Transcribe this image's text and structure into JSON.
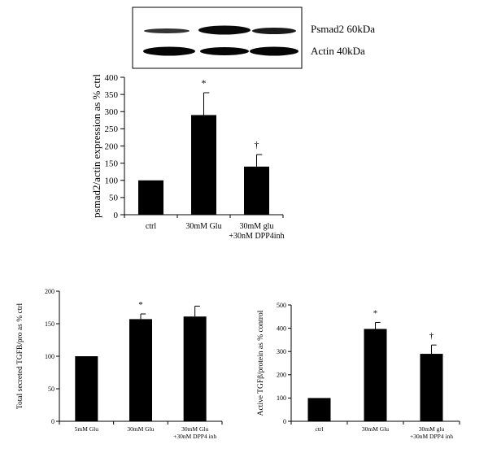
{
  "blot": {
    "labels": [
      "Psmad2 60kDa",
      "Actin 40kDa"
    ]
  },
  "chart_data": [
    {
      "type": "bar",
      "categories": [
        "ctrl",
        "30mM Glu",
        "30mM glu\n+30nM DPP4inh"
      ],
      "values": [
        100,
        290,
        140
      ],
      "errors": [
        0,
        65,
        35
      ],
      "markers": [
        "",
        "*",
        "†"
      ],
      "title": "",
      "xlabel": "",
      "ylabel": "psmad2/actin expression as % ctrl",
      "ylim": [
        0,
        400
      ],
      "yticks": [
        0,
        50,
        100,
        150,
        200,
        250,
        300,
        350,
        400
      ],
      "grid": false,
      "bar_color": "#000000"
    },
    {
      "type": "bar",
      "categories": [
        "5mM Glu",
        "30mM Glu",
        "30mM Glu\n+30nM DPP4 inh"
      ],
      "values": [
        100,
        157,
        161
      ],
      "errors": [
        0,
        8,
        16
      ],
      "markers": [
        "",
        "*",
        ""
      ],
      "title": "",
      "xlabel": "",
      "ylabel": "Total secreted TGFB/pro as % ctrl",
      "ylim": [
        0,
        200
      ],
      "yticks": [
        0,
        50,
        100,
        150,
        200
      ],
      "grid": false,
      "bar_color": "#000000"
    },
    {
      "type": "bar",
      "categories": [
        "ctrl",
        "30mM Glu",
        "30mM glu\n+30nM DPP4 inh"
      ],
      "values": [
        100,
        397,
        290
      ],
      "errors": [
        0,
        28,
        38
      ],
      "markers": [
        "",
        "*",
        "†"
      ],
      "title": "",
      "xlabel": "",
      "ylabel": "Active TGFβ/protein as % control",
      "ylim": [
        0,
        500
      ],
      "yticks": [
        0,
        100,
        200,
        300,
        400,
        500
      ],
      "grid": false,
      "bar_color": "#000000"
    }
  ]
}
